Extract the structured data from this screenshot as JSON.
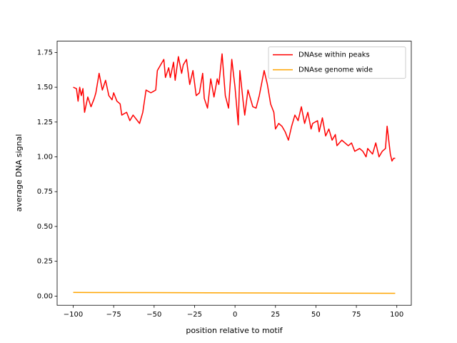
{
  "chart_data": {
    "type": "line",
    "xlabel": "position relative to motif",
    "ylabel": "average DNA signal",
    "xlim": [
      -109.95,
      108.95
    ],
    "ylim": [
      -0.066,
      1.831
    ],
    "xticks": [
      {
        "value": -100,
        "label": "−100"
      },
      {
        "value": -75,
        "label": "−75"
      },
      {
        "value": -50,
        "label": "−50"
      },
      {
        "value": -25,
        "label": "−25"
      },
      0,
      25,
      50,
      75,
      100
    ],
    "yticks": [
      {
        "value": 0,
        "label": "0.00"
      },
      {
        "value": 0.25,
        "label": "0.25"
      },
      {
        "value": 0.5,
        "label": "0.50"
      },
      {
        "value": 0.75,
        "label": "0.75"
      },
      {
        "value": 1,
        "label": "1.00"
      },
      {
        "value": 1.25,
        "label": "1.25"
      },
      {
        "value": 1.5,
        "label": "1.50"
      },
      {
        "value": 1.75,
        "label": "1.75"
      }
    ],
    "legend": "upper right",
    "grid": false,
    "series": [
      {
        "name": "DNAse within peaks",
        "color": "#ff0000",
        "x": [
          -100,
          -98,
          -97,
          -96,
          -95,
          -94,
          -93,
          -91,
          -89,
          -87,
          -86,
          -84,
          -82,
          -80,
          -78,
          -76,
          -75,
          -73,
          -71,
          -70,
          -67,
          -65,
          -63,
          -59,
          -57,
          -55,
          -52,
          -49,
          -48,
          -46,
          -44,
          -43,
          -41,
          -40,
          -38,
          -37,
          -35,
          -33,
          -32,
          -30,
          -28,
          -26,
          -24,
          -22,
          -20,
          -19,
          -17,
          -15,
          -13,
          -11,
          -10,
          -8,
          -6,
          -4,
          -2,
          0,
          2,
          3,
          5,
          6,
          8,
          10,
          11,
          13,
          15,
          17,
          18,
          20,
          22,
          24,
          25,
          27,
          29,
          31,
          33,
          35,
          37,
          39,
          41,
          43,
          45,
          47,
          48,
          51,
          52,
          54,
          56,
          58,
          60,
          62,
          63,
          66,
          68,
          70,
          72,
          74,
          77,
          79,
          81,
          82,
          85,
          87,
          89,
          91,
          93,
          94,
          96,
          97,
          98,
          99
        ],
        "values": [
          1.5,
          1.49,
          1.4,
          1.5,
          1.44,
          1.49,
          1.32,
          1.43,
          1.36,
          1.42,
          1.46,
          1.6,
          1.48,
          1.55,
          1.44,
          1.41,
          1.46,
          1.4,
          1.38,
          1.3,
          1.32,
          1.26,
          1.3,
          1.24,
          1.32,
          1.48,
          1.46,
          1.48,
          1.62,
          1.66,
          1.7,
          1.57,
          1.64,
          1.57,
          1.68,
          1.55,
          1.72,
          1.6,
          1.66,
          1.7,
          1.52,
          1.62,
          1.44,
          1.46,
          1.6,
          1.42,
          1.35,
          1.56,
          1.43,
          1.56,
          1.52,
          1.74,
          1.44,
          1.35,
          1.7,
          1.5,
          1.23,
          1.62,
          1.4,
          1.3,
          1.48,
          1.4,
          1.36,
          1.35,
          1.44,
          1.56,
          1.62,
          1.52,
          1.38,
          1.32,
          1.2,
          1.24,
          1.22,
          1.18,
          1.12,
          1.22,
          1.3,
          1.26,
          1.36,
          1.24,
          1.32,
          1.2,
          1.24,
          1.26,
          1.18,
          1.28,
          1.15,
          1.2,
          1.12,
          1.16,
          1.08,
          1.12,
          1.1,
          1.08,
          1.1,
          1.04,
          1.06,
          1.04,
          1.0,
          1.06,
          1.02,
          1.1,
          1.0,
          1.04,
          1.06,
          1.22,
          1.02,
          0.97,
          0.99,
          0.99
        ]
      },
      {
        "name": "DNAse genome wide",
        "color": "#ffa500",
        "x": [
          -100,
          -50,
          0,
          50,
          99
        ],
        "values": [
          0.026,
          0.025,
          0.023,
          0.021,
          0.02
        ]
      }
    ]
  }
}
